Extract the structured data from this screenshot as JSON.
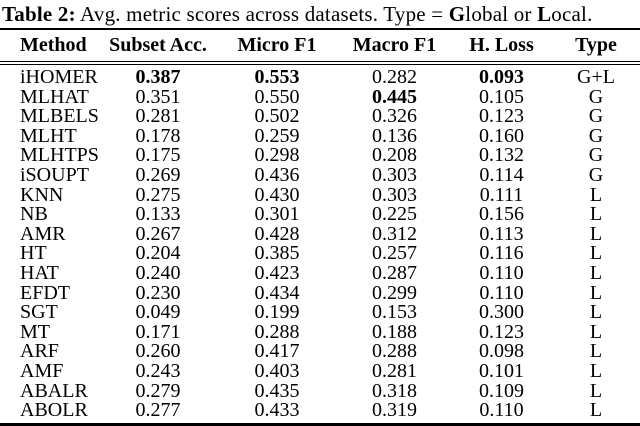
{
  "page": {
    "background": "#ffffff",
    "text_color": "#000000",
    "rule_color": "#000000"
  },
  "caption": {
    "segments": [
      {
        "text": "Table 2:",
        "bold": true
      },
      {
        "text": " Avg. metric scores across datasets. Type = ",
        "bold": false
      },
      {
        "text": "G",
        "bold": true
      },
      {
        "text": "lobal or ",
        "bold": false
      },
      {
        "text": "L",
        "bold": true
      },
      {
        "text": "ocal.",
        "bold": false
      }
    ]
  },
  "table": {
    "columns": [
      {
        "key": "method",
        "label": "Method",
        "align": "left"
      },
      {
        "key": "subset-acc",
        "label": "Subset Acc.",
        "align": "center"
      },
      {
        "key": "micro-f1",
        "label": "Micro F1",
        "align": "center"
      },
      {
        "key": "macro-f1",
        "label": "Macro F1",
        "align": "center"
      },
      {
        "key": "h-loss",
        "label": "H. Loss",
        "align": "center"
      },
      {
        "key": "type",
        "label": "Type",
        "align": "center"
      }
    ],
    "rows": [
      [
        "iHOMER",
        "0.387",
        "0.553",
        "0.282",
        "0.093",
        "G+L"
      ],
      [
        "MLHAT",
        "0.351",
        "0.550",
        "0.445",
        "0.105",
        "G"
      ],
      [
        "MLBELS",
        "0.281",
        "0.502",
        "0.326",
        "0.123",
        "G"
      ],
      [
        "MLHT",
        "0.178",
        "0.259",
        "0.136",
        "0.160",
        "G"
      ],
      [
        "MLHTPS",
        "0.175",
        "0.298",
        "0.208",
        "0.132",
        "G"
      ],
      [
        "iSOUPT",
        "0.269",
        "0.436",
        "0.303",
        "0.114",
        "G"
      ],
      [
        "KNN",
        "0.275",
        "0.430",
        "0.303",
        "0.111",
        "L"
      ],
      [
        "NB",
        "0.133",
        "0.301",
        "0.225",
        "0.156",
        "L"
      ],
      [
        "AMR",
        "0.267",
        "0.428",
        "0.312",
        "0.113",
        "L"
      ],
      [
        "HT",
        "0.204",
        "0.385",
        "0.257",
        "0.116",
        "L"
      ],
      [
        "HAT",
        "0.240",
        "0.423",
        "0.287",
        "0.110",
        "L"
      ],
      [
        "EFDT",
        "0.230",
        "0.434",
        "0.299",
        "0.110",
        "L"
      ],
      [
        "SGT",
        "0.049",
        "0.199",
        "0.153",
        "0.300",
        "L"
      ],
      [
        "MT",
        "0.171",
        "0.288",
        "0.188",
        "0.123",
        "L"
      ],
      [
        "ARF",
        "0.260",
        "0.417",
        "0.288",
        "0.098",
        "L"
      ],
      [
        "AMF",
        "0.243",
        "0.403",
        "0.281",
        "0.101",
        "L"
      ],
      [
        "ABALR",
        "0.279",
        "0.435",
        "0.318",
        "0.109",
        "L"
      ],
      [
        "ABOLR",
        "0.277",
        "0.433",
        "0.319",
        "0.110",
        "L"
      ]
    ],
    "bold_cells": [
      [
        0,
        1
      ],
      [
        0,
        2
      ],
      [
        0,
        4
      ],
      [
        1,
        3
      ]
    ]
  }
}
